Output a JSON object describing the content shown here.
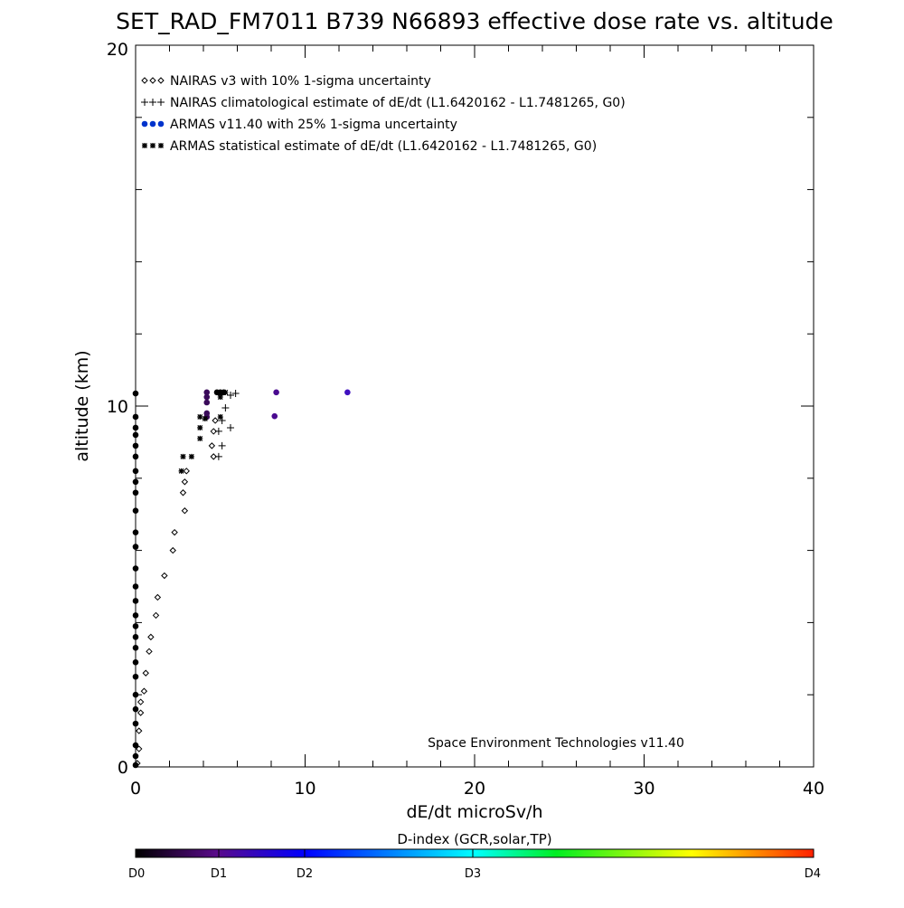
{
  "chart_data": {
    "type": "scatter",
    "title": "SET_RAD_FM7011  B739 N66893 effective dose rate vs. altitude",
    "xlabel": "dE/dt microSv/h",
    "ylabel": "altitude (km)",
    "xlim": [
      0,
      40
    ],
    "ylim": [
      0,
      20
    ],
    "xticks": [
      "0",
      "10",
      "20",
      "30",
      "40"
    ],
    "yticks": [
      "0",
      "10",
      "20"
    ],
    "annotation": "Space Environment Technologies v11.40",
    "legend_position": "top-left",
    "series": [
      {
        "name": "NAIRAS v3 with 10% 1-sigma uncertainty",
        "marker": "diamond",
        "color": "#000000",
        "points": [
          [
            0.1,
            0.1
          ],
          [
            0.2,
            0.5
          ],
          [
            0.2,
            1.0
          ],
          [
            0.3,
            1.5
          ],
          [
            0.3,
            1.8
          ],
          [
            0.5,
            2.1
          ],
          [
            0.6,
            2.6
          ],
          [
            0.8,
            3.2
          ],
          [
            0.9,
            3.6
          ],
          [
            1.2,
            4.2
          ],
          [
            1.3,
            4.7
          ],
          [
            1.7,
            5.3
          ],
          [
            2.2,
            6.0
          ],
          [
            2.3,
            6.5
          ],
          [
            2.9,
            7.1
          ],
          [
            2.8,
            7.6
          ],
          [
            2.9,
            7.9
          ],
          [
            3.0,
            8.2
          ],
          [
            4.6,
            8.6
          ],
          [
            4.5,
            8.9
          ],
          [
            4.6,
            9.3
          ],
          [
            4.7,
            9.6
          ]
        ]
      },
      {
        "name": "NAIRAS climatological estimate of dE/dt (L1.6420162 - L1.7481265, G0)",
        "marker": "plus",
        "color": "#000000",
        "points": [
          [
            4.9,
            8.6
          ],
          [
            5.1,
            8.9
          ],
          [
            4.9,
            9.3
          ],
          [
            5.6,
            9.4
          ],
          [
            5.1,
            9.6
          ],
          [
            5.3,
            9.95
          ],
          [
            5.6,
            10.3
          ],
          [
            5.9,
            10.35
          ]
        ]
      },
      {
        "name": "ARMAS v11.40 with 25% 1-sigma uncertainty",
        "marker": "dot",
        "color": "#0033cc",
        "points": [
          [
            0,
            0.05
          ],
          [
            0,
            0.3
          ],
          [
            0,
            0.6
          ],
          [
            0,
            1.2
          ],
          [
            0,
            1.6
          ],
          [
            0,
            2.0
          ],
          [
            0,
            2.5
          ],
          [
            0,
            2.9
          ],
          [
            0,
            3.3
          ],
          [
            0,
            3.6
          ],
          [
            0,
            3.9
          ],
          [
            0,
            4.2
          ],
          [
            0,
            4.6
          ],
          [
            0,
            5.0
          ],
          [
            0,
            5.5
          ],
          [
            0,
            6.1
          ],
          [
            0,
            6.5
          ],
          [
            0,
            7.1
          ],
          [
            0,
            7.6
          ],
          [
            0,
            7.9
          ],
          [
            0,
            8.2
          ],
          [
            0,
            8.6
          ],
          [
            0,
            8.9
          ],
          [
            0,
            9.2
          ],
          [
            0,
            9.4
          ],
          [
            0,
            9.7
          ],
          [
            0,
            10.35
          ],
          [
            4.2,
            9.7
          ],
          [
            4.2,
            9.8
          ],
          [
            4.2,
            10.1
          ],
          [
            4.2,
            10.25
          ],
          [
            4.2,
            10.38
          ],
          [
            8.2,
            9.72
          ],
          [
            8.3,
            10.38
          ],
          [
            12.5,
            10.38
          ],
          [
            4.8,
            10.38
          ],
          [
            5.0,
            10.38
          ],
          [
            5.2,
            10.38
          ]
        ],
        "dindex": [
          0,
          0,
          0,
          0,
          0,
          0,
          0,
          0,
          0,
          0,
          0,
          0,
          0,
          0,
          0,
          0,
          0,
          0,
          0,
          0,
          0,
          0,
          0,
          0,
          0,
          0,
          0,
          0.6,
          0.6,
          0.6,
          0.6,
          0.6,
          0.8,
          0.8,
          1.0,
          0,
          0,
          0
        ]
      },
      {
        "name": "ARMAS statistical estimate of dE/dt (L1.6420162 - L1.7481265, G0)",
        "marker": "asterisk",
        "color": "#000000",
        "points": [
          [
            2.7,
            8.2
          ],
          [
            2.8,
            8.6
          ],
          [
            3.3,
            8.6
          ],
          [
            3.8,
            9.1
          ],
          [
            3.8,
            9.4
          ],
          [
            3.8,
            9.7
          ],
          [
            4.1,
            9.65
          ],
          [
            5.0,
            9.7
          ],
          [
            5.0,
            10.25
          ],
          [
            5.0,
            10.35
          ],
          [
            5.3,
            10.38
          ]
        ]
      }
    ],
    "colorbar": {
      "title": "D-index (GCR,solar,TP)",
      "labels": [
        {
          "text": "D0",
          "value": 0
        },
        {
          "text": "D1",
          "value": 0.5
        },
        {
          "text": "D2",
          "value": 1
        },
        {
          "text": "D3",
          "value": 2
        },
        {
          "text": "D4",
          "value": 4
        }
      ],
      "colors": [
        "#000000",
        "#5a0a8a",
        "#0000ff",
        "#00ffff",
        "#00ff00",
        "#ffff00",
        "#ff2000"
      ]
    }
  }
}
